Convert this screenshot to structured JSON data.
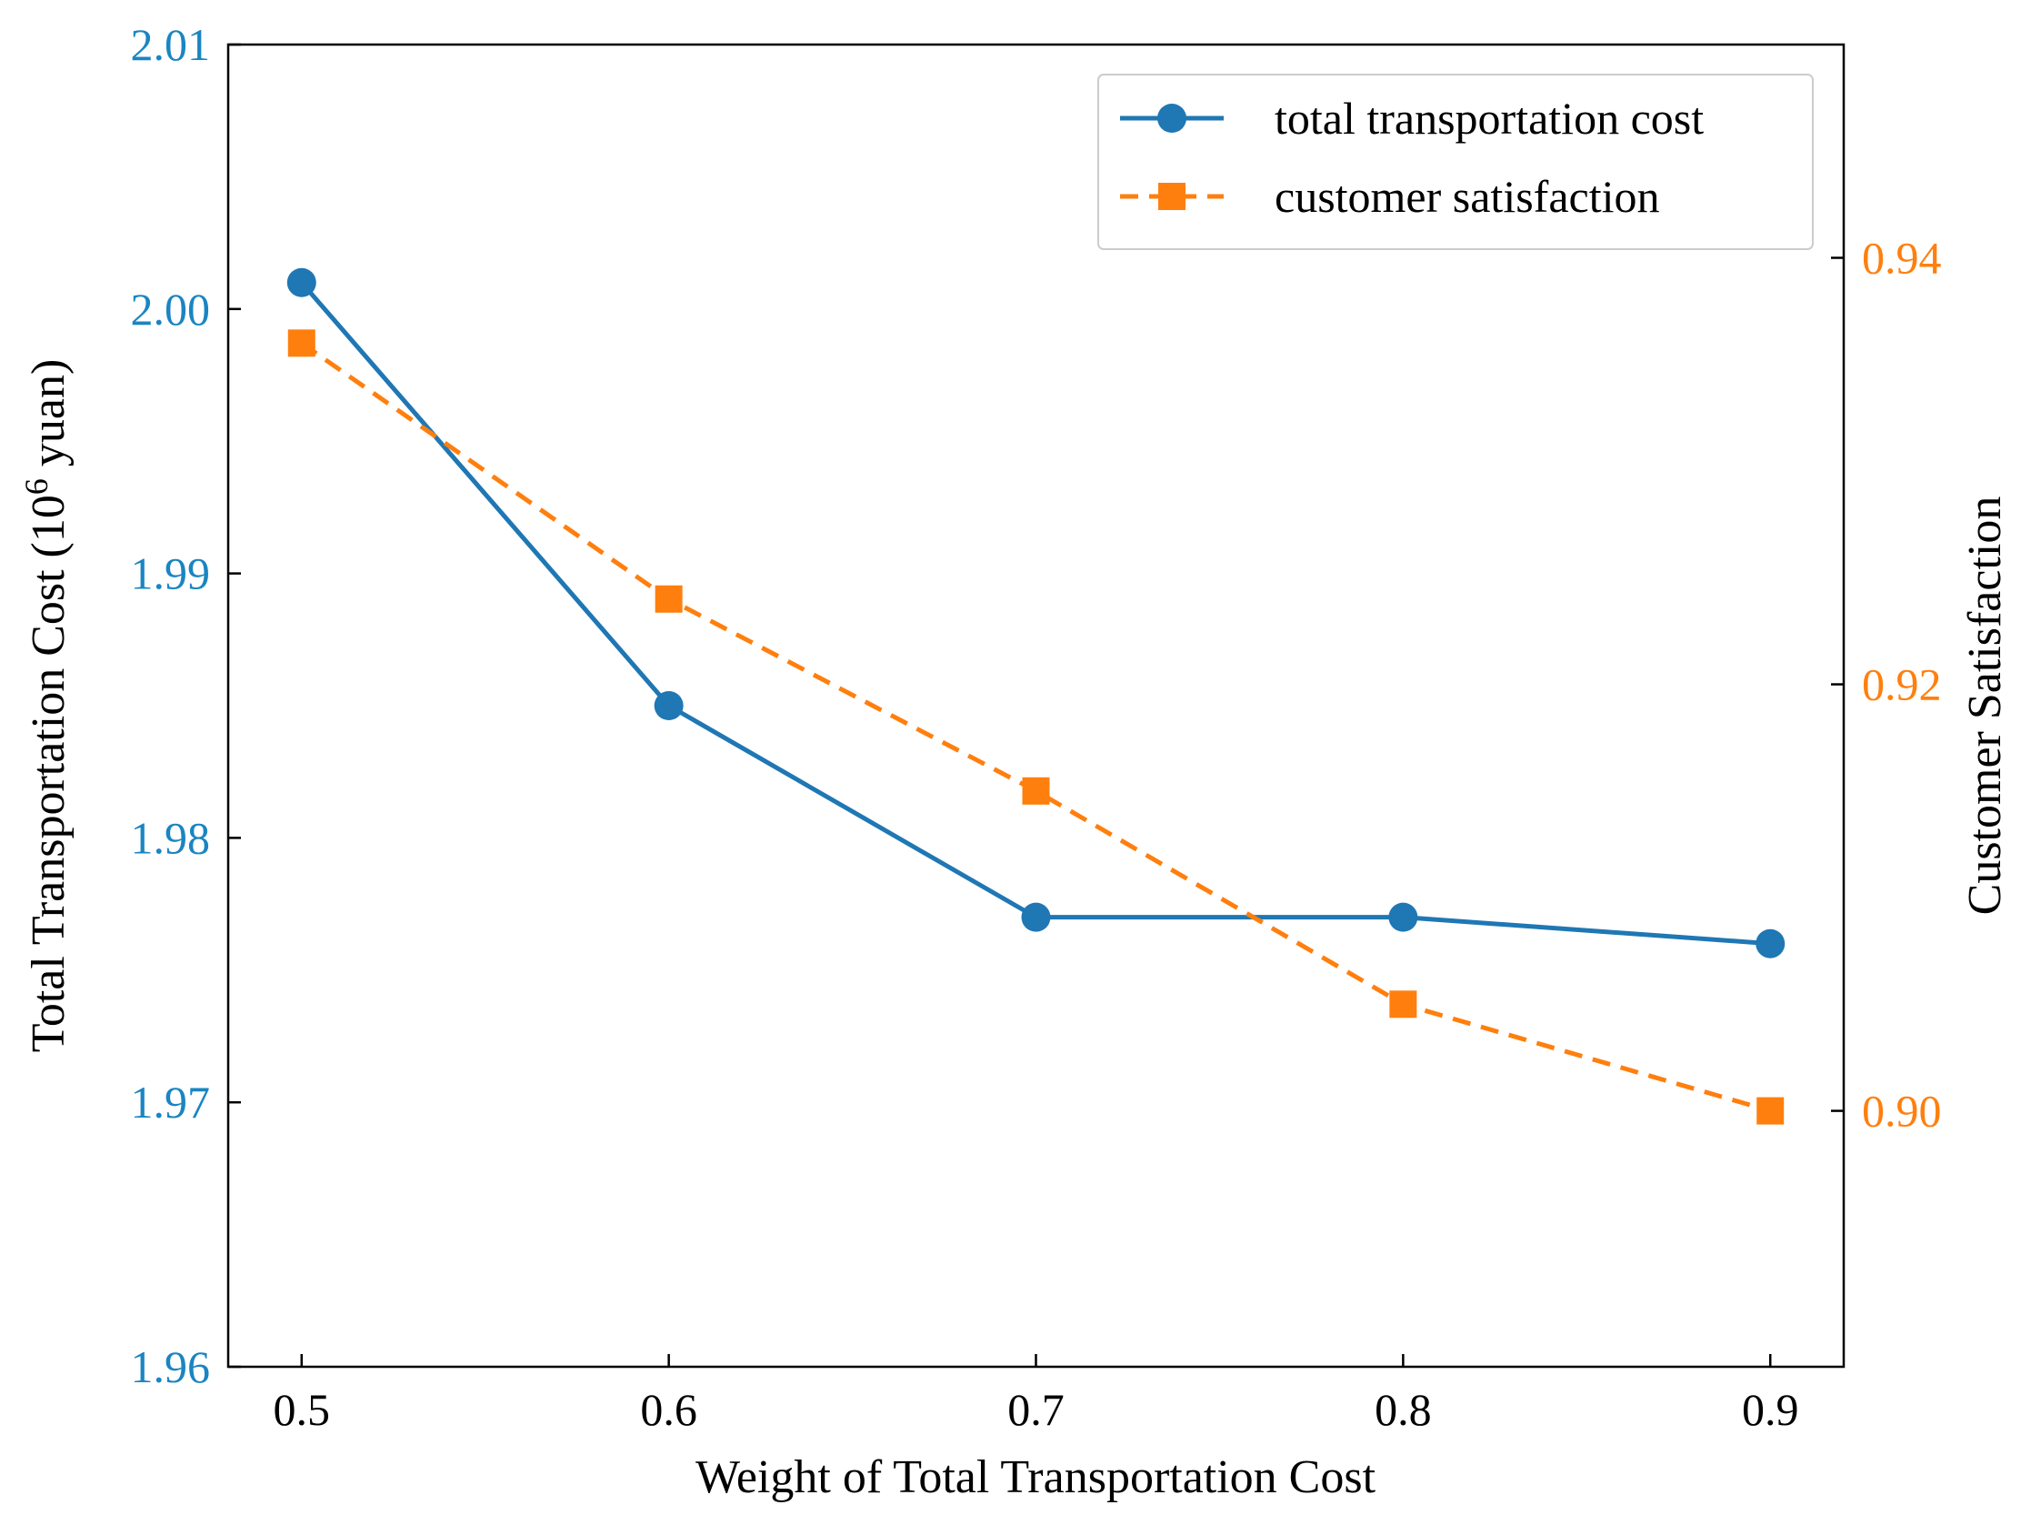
{
  "chart_data": {
    "type": "line",
    "xlabel": "Weight of Total Transportation Cost",
    "ylabel_left": {
      "pre": "Total Transportation Cost (10",
      "sup": "6",
      "post": " yuan)"
    },
    "ylabel_right": "Customer Satisfaction",
    "x": [
      0.5,
      0.6,
      0.7,
      0.8,
      0.9
    ],
    "x_ticks": [
      "0.5",
      "0.6",
      "0.7",
      "0.8",
      "0.9"
    ],
    "xlim": [
      0.48,
      0.92
    ],
    "ylim_left": [
      1.96,
      2.01
    ],
    "y_ticks_left": [
      "1.96",
      "1.97",
      "1.98",
      "1.99",
      "2.00",
      "2.01"
    ],
    "ylim_right": [
      0.888,
      0.95
    ],
    "y_ticks_right": [
      "0.90",
      "0.92",
      "0.94"
    ],
    "series": [
      {
        "name": "total transportation cost",
        "axis": "left",
        "values": [
          2.001,
          1.985,
          1.977,
          1.977,
          1.976
        ],
        "color": "#1f77b4",
        "marker": "circle",
        "linestyle": "solid"
      },
      {
        "name": "customer satisfaction",
        "axis": "right",
        "values": [
          0.936,
          0.924,
          0.915,
          0.905,
          0.9
        ],
        "color": "#ff7f0e",
        "marker": "square",
        "linestyle": "dashed"
      }
    ],
    "legend": "top-right",
    "grid": false,
    "colors": {
      "left_axis_ticks": "#1a85c2",
      "right_axis_ticks": "#ff7f0e",
      "axis": "#000000"
    }
  }
}
